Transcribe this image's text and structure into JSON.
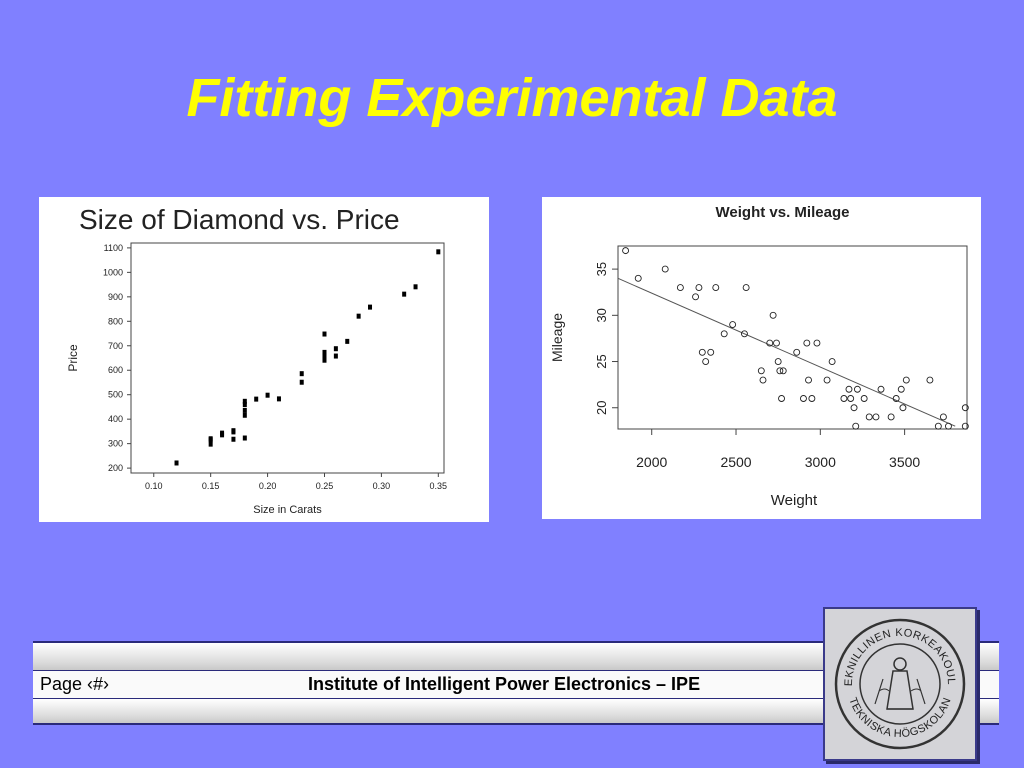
{
  "slide": {
    "title": "Fitting Experimental Data"
  },
  "footer": {
    "page_label": "Page  ‹#›",
    "institute": "Institute of Intelligent Power Electronics – IPE"
  },
  "logo": {
    "ring_text_top": "TEKNILLINEN KORKEAKOULU",
    "ring_text_bottom": "TEKNISKA HÖGSKOLAN"
  },
  "colors": {
    "background": "#8080ff",
    "title": "#ffff00"
  },
  "chart_data": [
    {
      "type": "scatter",
      "title": "Size of Diamond vs. Price",
      "xlabel": "Size in Carats",
      "ylabel": "Price",
      "xlim": [
        0.08,
        0.355
      ],
      "ylim": [
        180,
        1120
      ],
      "xticks": [
        "0.10",
        "0.15",
        "0.20",
        "0.25",
        "0.30",
        "0.35"
      ],
      "yticks": [
        "200",
        "300",
        "400",
        "500",
        "600",
        "700",
        "800",
        "900",
        "1000",
        "1100"
      ],
      "x": [
        0.12,
        0.15,
        0.15,
        0.15,
        0.16,
        0.16,
        0.17,
        0.17,
        0.17,
        0.18,
        0.18,
        0.18,
        0.18,
        0.18,
        0.19,
        0.2,
        0.21,
        0.23,
        0.23,
        0.25,
        0.25,
        0.25,
        0.25,
        0.26,
        0.26,
        0.27,
        0.28,
        0.29,
        0.32,
        0.33,
        0.35
      ],
      "y": [
        223,
        300,
        318,
        322,
        338,
        345,
        320,
        350,
        355,
        325,
        418,
        438,
        462,
        475,
        484,
        500,
        485,
        553,
        588,
        643,
        662,
        675,
        750,
        660,
        690,
        720,
        823,
        860,
        913,
        943,
        1086
      ]
    },
    {
      "type": "scatter",
      "title": "Weight vs. Mileage",
      "xlabel": "Weight",
      "ylabel": "Mileage",
      "xlim": [
        1800,
        3870
      ],
      "ylim": [
        17.7,
        37.5
      ],
      "xticks": [
        "2000",
        "2500",
        "3000",
        "3500"
      ],
      "yticks": [
        "20",
        "25",
        "30",
        "35"
      ],
      "fit_line": {
        "x": [
          1800,
          3800
        ],
        "y": [
          34,
          18
        ]
      },
      "x": [
        1845,
        1920,
        2080,
        2170,
        2260,
        2280,
        2300,
        2320,
        2350,
        2380,
        2430,
        2480,
        2550,
        2560,
        2650,
        2660,
        2700,
        2720,
        2740,
        2750,
        2760,
        2770,
        2780,
        2860,
        2900,
        2920,
        2930,
        2950,
        2980,
        3040,
        3070,
        3140,
        3170,
        3180,
        3200,
        3210,
        3220,
        3260,
        3290,
        3330,
        3360,
        3420,
        3450,
        3480,
        3490,
        3510,
        3650,
        3700,
        3730,
        3760,
        3860,
        3860
      ],
      "y": [
        37,
        34,
        35,
        33,
        32,
        33,
        26,
        25,
        26,
        33,
        28,
        29,
        28,
        33,
        24,
        23,
        27,
        30,
        27,
        25,
        24,
        21,
        24,
        26,
        21,
        27,
        23,
        21,
        27,
        23,
        25,
        21,
        22,
        21,
        20,
        18,
        22,
        21,
        19,
        19,
        22,
        19,
        21,
        22,
        20,
        23,
        23,
        18,
        19,
        18,
        20,
        18
      ]
    }
  ]
}
